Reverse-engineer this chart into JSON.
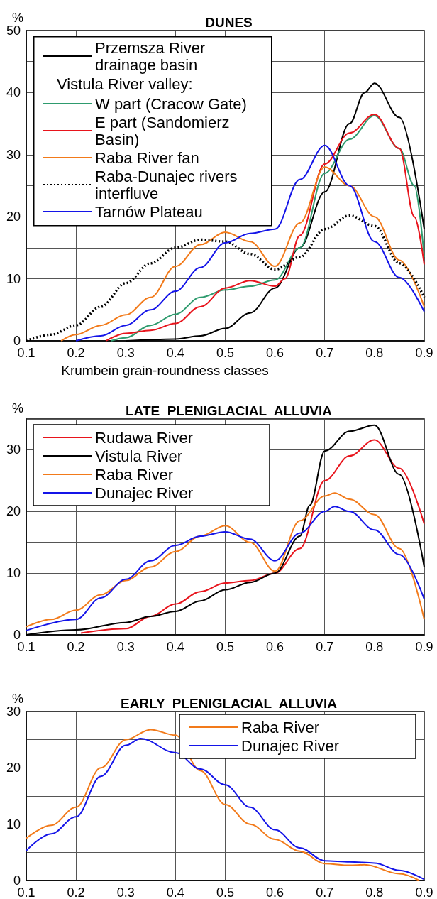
{
  "chart_data": [
    {
      "type": "line",
      "title": "DUNES",
      "xlabel": "Krumbein grain-roundness classes",
      "ylabel": "%",
      "legend_title": "Vistula River valley:",
      "legend": "top left",
      "grid": true,
      "xlim": [
        0.1,
        0.9
      ],
      "ylim": [
        0,
        50
      ],
      "xticks": [
        0.1,
        0.2,
        0.3,
        0.4,
        0.5,
        0.6,
        0.7,
        0.8,
        0.9
      ],
      "yticks": [
        0,
        {
          "value": 5,
          "label": null
        },
        10,
        {
          "value": 15,
          "label": null
        },
        20,
        {
          "value": 25,
          "label": null
        },
        30,
        {
          "value": 35,
          "label": null
        },
        40,
        {
          "value": 45,
          "label": null
        },
        50
      ],
      "series": [
        {
          "name": "Przemsza River drainage basin",
          "color": "#000000",
          "x": [
            0.3,
            0.4,
            0.45,
            0.5,
            0.55,
            0.6,
            0.65,
            0.7,
            0.75,
            0.78,
            0.8,
            0.85,
            0.9
          ],
          "values": [
            0,
            0.3,
            0.8,
            2,
            4.5,
            8.5,
            15,
            24,
            35,
            40,
            41.5,
            36,
            18
          ]
        },
        {
          "name": "W part (Cracow Gate)",
          "color": "#2e9b6e",
          "x": [
            0.27,
            0.3,
            0.35,
            0.4,
            0.45,
            0.5,
            0.55,
            0.6,
            0.65,
            0.7,
            0.75,
            0.8,
            0.85,
            0.88,
            0.9
          ],
          "values": [
            0,
            0.5,
            2.5,
            4.3,
            7,
            8.2,
            8.8,
            9.8,
            15,
            27,
            32.5,
            36.3,
            31,
            25,
            13.5
          ]
        },
        {
          "name": "E part (Sandomierz Basin)",
          "color": "#e8141c",
          "x": [
            0.26,
            0.3,
            0.35,
            0.4,
            0.45,
            0.5,
            0.55,
            0.6,
            0.62,
            0.65,
            0.7,
            0.75,
            0.8,
            0.85,
            0.88,
            0.9
          ],
          "values": [
            0,
            1.2,
            1.7,
            2.8,
            5.5,
            8.5,
            9.7,
            8.8,
            10,
            17,
            28.5,
            33.5,
            36.5,
            31,
            20,
            12.3
          ]
        },
        {
          "name": "Raba River fan",
          "color": "#f27a1a",
          "x": [
            0.17,
            0.2,
            0.25,
            0.3,
            0.35,
            0.4,
            0.45,
            0.5,
            0.55,
            0.6,
            0.65,
            0.7,
            0.75,
            0.8,
            0.85,
            0.9
          ],
          "values": [
            0,
            1,
            2.5,
            4.2,
            7,
            12,
            15.5,
            17.5,
            16,
            12,
            19,
            28,
            25,
            20,
            13,
            5.5
          ]
        },
        {
          "name": "Raba-Dunajec rivers interfluve",
          "color": "#000000",
          "line_style": "dotted",
          "x": [
            0.1,
            0.15,
            0.2,
            0.25,
            0.3,
            0.35,
            0.4,
            0.45,
            0.5,
            0.55,
            0.6,
            0.65,
            0.7,
            0.75,
            0.8,
            0.85,
            0.9
          ],
          "values": [
            0,
            1,
            2.5,
            5.5,
            9.3,
            12.5,
            15,
            16.3,
            16,
            14,
            11.5,
            13.5,
            18,
            20.2,
            18.5,
            12.5,
            7
          ]
        },
        {
          "name": "Tarnów Plateau",
          "color": "#1414e8",
          "x": [
            0.2,
            0.25,
            0.3,
            0.35,
            0.4,
            0.45,
            0.5,
            0.55,
            0.6,
            0.65,
            0.7,
            0.75,
            0.8,
            0.85,
            0.9
          ],
          "values": [
            0,
            0.8,
            2.5,
            5,
            8,
            11.8,
            15.8,
            17.3,
            18,
            26,
            31.5,
            25,
            16,
            10.2,
            4.7
          ]
        }
      ]
    },
    {
      "type": "line",
      "title": "LATE  PLENIGLACIAL  ALLUVIA",
      "ylabel": "%",
      "legend": "top left",
      "grid": true,
      "xlim": [
        0.1,
        0.9
      ],
      "ylim": [
        0,
        35
      ],
      "xticks": [
        0.1,
        0.2,
        0.3,
        0.4,
        0.5,
        0.6,
        0.7,
        0.8,
        0.9
      ],
      "yticks": [
        0,
        {
          "value": 5,
          "label": null
        },
        10,
        {
          "value": 15,
          "label": null
        },
        20,
        {
          "value": 25,
          "label": null
        },
        30,
        {
          "value": 35,
          "label": null
        }
      ],
      "series": [
        {
          "name": "Rudawa River",
          "color": "#e8141c",
          "x": [
            0.21,
            0.3,
            0.35,
            0.4,
            0.45,
            0.5,
            0.55,
            0.6,
            0.65,
            0.7,
            0.75,
            0.8,
            0.85,
            0.9
          ],
          "values": [
            0.3,
            1,
            3,
            5,
            7,
            8.4,
            8.8,
            10,
            14,
            25,
            29,
            31.6,
            27,
            18
          ]
        },
        {
          "name": "Vistula River",
          "color": "#000000",
          "x": [
            0.1,
            0.2,
            0.3,
            0.35,
            0.4,
            0.45,
            0.5,
            0.55,
            0.6,
            0.65,
            0.67,
            0.7,
            0.75,
            0.8,
            0.85,
            0.9
          ],
          "values": [
            0,
            0.8,
            2,
            3,
            3.8,
            5.5,
            7.3,
            8.5,
            10,
            16,
            21,
            29.8,
            33,
            34,
            26,
            11
          ]
        },
        {
          "name": "Raba River",
          "color": "#f27a1a",
          "x": [
            0.1,
            0.15,
            0.2,
            0.25,
            0.3,
            0.35,
            0.4,
            0.45,
            0.5,
            0.55,
            0.6,
            0.65,
            0.7,
            0.72,
            0.75,
            0.8,
            0.85,
            0.9
          ],
          "values": [
            1.3,
            2.5,
            4,
            6.5,
            8.8,
            11,
            13.5,
            16,
            17.7,
            15,
            10.3,
            18.5,
            22.5,
            23,
            22,
            19.5,
            14,
            2.5
          ]
        },
        {
          "name": "Dunajec River",
          "color": "#1414e8",
          "x": [
            0.1,
            0.2,
            0.25,
            0.3,
            0.35,
            0.4,
            0.45,
            0.5,
            0.55,
            0.6,
            0.65,
            0.7,
            0.72,
            0.75,
            0.8,
            0.85,
            0.9
          ],
          "values": [
            0.7,
            2.5,
            6,
            9,
            12,
            14.5,
            16,
            16.7,
            15.5,
            12,
            16.5,
            20,
            20.8,
            20,
            17,
            13,
            5.8
          ]
        }
      ]
    },
    {
      "type": "line",
      "title": "EARLY  PLENIGLACIAL  ALLUVIA",
      "ylabel": "%",
      "legend": "top right",
      "grid": true,
      "xlim": [
        0.1,
        0.9
      ],
      "ylim": [
        0,
        30
      ],
      "xticks": [
        0.1,
        0.2,
        0.3,
        0.4,
        0.5,
        0.6,
        0.7,
        0.8,
        0.9
      ],
      "yticks": [
        0,
        {
          "value": 5,
          "label": null
        },
        10,
        {
          "value": 15,
          "label": null
        },
        20,
        {
          "value": 25,
          "label": null
        },
        30
      ],
      "series": [
        {
          "name": "Raba River",
          "color": "#f27a1a",
          "x": [
            0.1,
            0.15,
            0.2,
            0.25,
            0.3,
            0.35,
            0.4,
            0.45,
            0.5,
            0.55,
            0.6,
            0.65,
            0.7,
            0.75,
            0.78,
            0.85,
            0.89
          ],
          "values": [
            7.5,
            9.8,
            13,
            20,
            25,
            26.8,
            25.8,
            19.5,
            13.5,
            10,
            7.3,
            5.2,
            3,
            2.7,
            2.8,
            1.2,
            0
          ]
        },
        {
          "name": "Dunajec River",
          "color": "#1414e8",
          "x": [
            0.1,
            0.15,
            0.2,
            0.25,
            0.3,
            0.33,
            0.4,
            0.45,
            0.5,
            0.55,
            0.6,
            0.65,
            0.7,
            0.75,
            0.8,
            0.85,
            0.9
          ],
          "values": [
            5.3,
            8.3,
            11.3,
            18.5,
            24,
            25.2,
            22.7,
            19.8,
            17,
            13,
            9,
            5.8,
            3.5,
            3.3,
            3.1,
            1.8,
            0.2
          ]
        }
      ]
    }
  ]
}
